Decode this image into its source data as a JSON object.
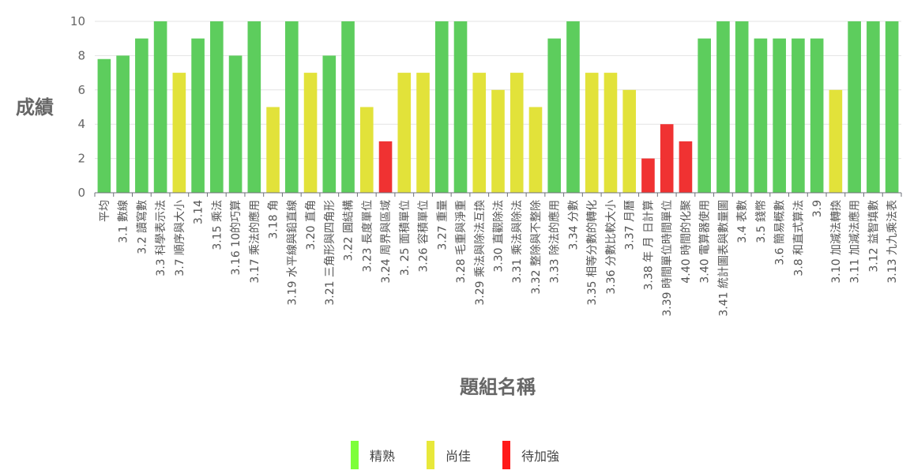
{
  "chart_data": {
    "type": "bar",
    "title": "",
    "xlabel": "題組名稱",
    "ylabel": "成績",
    "ylim": [
      0,
      10
    ],
    "yticks": [
      0,
      2,
      4,
      6,
      8,
      10
    ],
    "grid": true,
    "legend_position": "bottom",
    "categories": [
      "平均",
      "3.1 數線",
      "3.2 讀寫數",
      "3.3 科學表示法",
      "3.7 順序與大小",
      "3.14",
      "3.15 乘法",
      "3.16 10的巧算",
      "3.17 乘法的應用",
      "3.18 角",
      "3.19 水平線與鉛直線",
      "3.20 直角",
      "3.21 三角形與四角形",
      "3.22 圓結構",
      "3.23 長度單位",
      "3.24 周界與區域",
      "3. 25 面積單位",
      "3.26 容積單位",
      "3.27 重量",
      "3.28 毛重與淨重",
      "3.29 乘法與除法互換",
      "3.30 直觀除法",
      "3.31 乘法與除法",
      "3.32 整除與不整除",
      "3.33 除法的應用",
      "3.34 分數",
      "3.35 相等分數的轉化",
      "3.36 分數比較大小",
      "3.37 月曆",
      "3.38 年 月 日計算",
      "3.39 時間單位時間單位",
      "4.40 時間的化聚",
      "3.40 電算器使用",
      "3.41 統計圖表與數量圖",
      "3.4 表數",
      "3.5 錢幣",
      "3.6 簡易概數",
      "3.8 和直式算法",
      "3.9",
      "3.10 加減法轉換",
      "3.11 加減法應用",
      "3.12 益智填數",
      "3.13 九九乘法表"
    ],
    "values": [
      7.8,
      8,
      9,
      10,
      7,
      9,
      10,
      8,
      10,
      5,
      10,
      7,
      8,
      10,
      5,
      3,
      7,
      7,
      10,
      10,
      7,
      6,
      7,
      5,
      9,
      10,
      7,
      7,
      6,
      2,
      4,
      3,
      9,
      10,
      10,
      9,
      9,
      9,
      9,
      6,
      10,
      10,
      10
    ],
    "levels": [
      "精熟",
      "精熟",
      "精熟",
      "精熟",
      "尚佳",
      "精熟",
      "精熟",
      "精熟",
      "精熟",
      "尚佳",
      "精熟",
      "尚佳",
      "精熟",
      "精熟",
      "尚佳",
      "待加強",
      "尚佳",
      "尚佳",
      "精熟",
      "精熟",
      "尚佳",
      "尚佳",
      "尚佳",
      "尚佳",
      "精熟",
      "精熟",
      "尚佳",
      "尚佳",
      "尚佳",
      "待加強",
      "待加強",
      "待加強",
      "精熟",
      "精熟",
      "精熟",
      "精熟",
      "精熟",
      "精熟",
      "精熟",
      "尚佳",
      "精熟",
      "精熟",
      "精熟"
    ],
    "legend": [
      {
        "name": "精熟",
        "color": "#5dcd5d",
        "swatch": "#7dff3a"
      },
      {
        "name": "尚佳",
        "color": "#e2e23a",
        "swatch": "#e8e83a"
      },
      {
        "name": "待加強",
        "color": "#f03232",
        "swatch": "#ff1a1a"
      }
    ]
  }
}
